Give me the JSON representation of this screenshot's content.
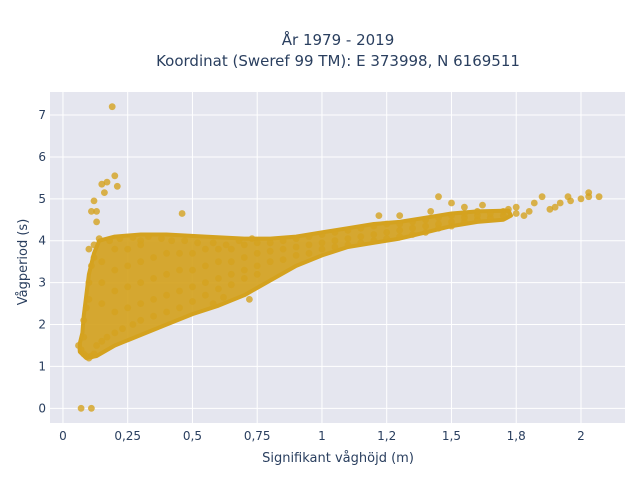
{
  "chart_data": {
    "type": "scatter",
    "title_line1": "År 1979 - 2019",
    "title_line2": "Koordinat (Sweref 99 TM): E 373998, N 6169511",
    "xlabel": "Signifikant våghöjd (m)",
    "ylabel": "Vågperiod (s)",
    "xlim": [
      -0.05,
      2.17
    ],
    "ylim": [
      -0.35,
      7.55
    ],
    "grid": true,
    "x_ticks": [
      {
        "value": 0,
        "label": "0"
      },
      {
        "value": 0.25,
        "label": "0,25"
      },
      {
        "value": 0.5,
        "label": "0,5"
      },
      {
        "value": 0.75,
        "label": "0,75"
      },
      {
        "value": 1,
        "label": "1"
      },
      {
        "value": 1.25,
        "label": "1,2"
      },
      {
        "value": 1.5,
        "label": "1,5"
      },
      {
        "value": 1.75,
        "label": "1,8"
      },
      {
        "value": 2,
        "label": "2"
      }
    ],
    "y_ticks": [
      {
        "value": 0,
        "label": "0"
      },
      {
        "value": 1,
        "label": "1"
      },
      {
        "value": 2,
        "label": "2"
      },
      {
        "value": 3,
        "label": "3"
      },
      {
        "value": 4,
        "label": "4"
      },
      {
        "value": 5,
        "label": "5"
      },
      {
        "value": 6,
        "label": "6"
      },
      {
        "value": 7,
        "label": "7"
      }
    ],
    "marker_color": "#d4a21f",
    "plot_bg": "#e5e6ef",
    "grid_color": "#ffffff",
    "points": [
      [
        0.07,
        0.0
      ],
      [
        0.11,
        0.0
      ],
      [
        0.19,
        7.2
      ],
      [
        0.2,
        5.55
      ],
      [
        0.21,
        5.3
      ],
      [
        0.16,
        5.15
      ],
      [
        0.15,
        5.35
      ],
      [
        0.17,
        5.4
      ],
      [
        0.12,
        4.95
      ],
      [
        0.11,
        4.7
      ],
      [
        0.13,
        4.7
      ],
      [
        0.13,
        4.45
      ],
      [
        0.46,
        4.65
      ],
      [
        0.07,
        1.4
      ],
      [
        0.06,
        1.5
      ],
      [
        0.08,
        1.3
      ],
      [
        0.09,
        1.25
      ],
      [
        0.1,
        1.2
      ],
      [
        0.11,
        1.25
      ],
      [
        0.12,
        1.3
      ],
      [
        0.08,
        2.1
      ],
      [
        0.08,
        1.7
      ],
      [
        0.09,
        2.4
      ],
      [
        0.1,
        2.6
      ],
      [
        0.1,
        3.0
      ],
      [
        0.11,
        3.4
      ],
      [
        0.12,
        3.6
      ],
      [
        0.12,
        3.9
      ],
      [
        0.1,
        3.8
      ],
      [
        0.13,
        1.5
      ],
      [
        0.15,
        1.6
      ],
      [
        0.17,
        1.7
      ],
      [
        0.2,
        1.8
      ],
      [
        0.23,
        1.9
      ],
      [
        0.27,
        2.0
      ],
      [
        0.3,
        2.1
      ],
      [
        0.35,
        2.2
      ],
      [
        0.4,
        2.3
      ],
      [
        0.45,
        2.4
      ],
      [
        0.5,
        2.55
      ],
      [
        0.55,
        2.7
      ],
      [
        0.6,
        2.85
      ],
      [
        0.65,
        2.95
      ],
      [
        0.7,
        3.1
      ],
      [
        0.75,
        3.2
      ],
      [
        0.14,
        4.05
      ],
      [
        0.18,
        4.0
      ],
      [
        0.22,
        4.05
      ],
      [
        0.27,
        4.08
      ],
      [
        0.3,
        4.0
      ],
      [
        0.33,
        4.1
      ],
      [
        0.38,
        4.05
      ],
      [
        0.42,
        4.0
      ],
      [
        0.47,
        4.0
      ],
      [
        0.52,
        3.95
      ],
      [
        0.58,
        3.95
      ],
      [
        0.63,
        3.9
      ],
      [
        0.68,
        4.0
      ],
      [
        0.73,
        4.05
      ],
      [
        0.15,
        2.5
      ],
      [
        0.15,
        3.0
      ],
      [
        0.15,
        3.5
      ],
      [
        0.2,
        2.3
      ],
      [
        0.2,
        2.8
      ],
      [
        0.2,
        3.3
      ],
      [
        0.2,
        3.8
      ],
      [
        0.25,
        2.4
      ],
      [
        0.25,
        2.9
      ],
      [
        0.25,
        3.4
      ],
      [
        0.25,
        3.8
      ],
      [
        0.3,
        2.5
      ],
      [
        0.3,
        3.0
      ],
      [
        0.3,
        3.5
      ],
      [
        0.3,
        3.9
      ],
      [
        0.35,
        2.6
      ],
      [
        0.35,
        3.1
      ],
      [
        0.35,
        3.6
      ],
      [
        0.4,
        2.7
      ],
      [
        0.4,
        3.2
      ],
      [
        0.4,
        3.7
      ],
      [
        0.45,
        2.8
      ],
      [
        0.45,
        3.3
      ],
      [
        0.45,
        3.7
      ],
      [
        0.5,
        2.9
      ],
      [
        0.5,
        3.3
      ],
      [
        0.5,
        3.7
      ],
      [
        0.55,
        3.0
      ],
      [
        0.55,
        3.4
      ],
      [
        0.55,
        3.8
      ],
      [
        0.6,
        3.1
      ],
      [
        0.6,
        3.5
      ],
      [
        0.6,
        3.8
      ],
      [
        0.65,
        3.2
      ],
      [
        0.65,
        3.5
      ],
      [
        0.65,
        3.8
      ],
      [
        0.7,
        3.3
      ],
      [
        0.7,
        3.6
      ],
      [
        0.7,
        3.9
      ],
      [
        0.75,
        3.4
      ],
      [
        0.75,
        3.7
      ],
      [
        0.75,
        3.95
      ],
      [
        0.8,
        3.5
      ],
      [
        0.8,
        3.75
      ],
      [
        0.8,
        3.95
      ],
      [
        0.85,
        3.55
      ],
      [
        0.85,
        3.8
      ],
      [
        0.85,
        4.0
      ],
      [
        0.9,
        3.65
      ],
      [
        0.9,
        3.85
      ],
      [
        0.9,
        4.05
      ],
      [
        0.95,
        3.7
      ],
      [
        0.95,
        3.9
      ],
      [
        0.95,
        4.1
      ],
      [
        1.0,
        3.8
      ],
      [
        1.0,
        3.95
      ],
      [
        1.0,
        4.15
      ],
      [
        1.05,
        3.85
      ],
      [
        1.05,
        4.0
      ],
      [
        1.05,
        4.2
      ],
      [
        1.1,
        3.9
      ],
      [
        1.1,
        4.05
      ],
      [
        1.1,
        4.25
      ],
      [
        1.15,
        3.95
      ],
      [
        1.15,
        4.1
      ],
      [
        1.15,
        4.3
      ],
      [
        1.2,
        4.0
      ],
      [
        1.2,
        4.15
      ],
      [
        1.2,
        4.35
      ],
      [
        1.25,
        4.05
      ],
      [
        1.25,
        4.2
      ],
      [
        1.25,
        4.4
      ],
      [
        1.3,
        4.1
      ],
      [
        1.3,
        4.25
      ],
      [
        1.3,
        4.4
      ],
      [
        1.35,
        4.15
      ],
      [
        1.35,
        4.3
      ],
      [
        1.35,
        4.45
      ],
      [
        1.4,
        4.2
      ],
      [
        1.4,
        4.35
      ],
      [
        1.4,
        4.5
      ],
      [
        1.45,
        4.3
      ],
      [
        1.45,
        4.4
      ],
      [
        1.45,
        4.55
      ],
      [
        1.5,
        4.35
      ],
      [
        1.5,
        4.45
      ],
      [
        1.5,
        4.6
      ],
      [
        1.55,
        4.45
      ],
      [
        1.55,
        4.55
      ],
      [
        1.55,
        4.65
      ],
      [
        1.6,
        4.5
      ],
      [
        1.6,
        4.6
      ],
      [
        1.6,
        4.7
      ],
      [
        1.65,
        4.55
      ],
      [
        1.65,
        4.65
      ],
      [
        1.7,
        4.6
      ],
      [
        1.7,
        4.7
      ],
      [
        1.75,
        4.65
      ],
      [
        1.75,
        4.8
      ],
      [
        1.78,
        4.6
      ],
      [
        1.8,
        4.7
      ],
      [
        1.82,
        4.9
      ],
      [
        1.85,
        5.05
      ],
      [
        1.88,
        4.75
      ],
      [
        1.9,
        4.8
      ],
      [
        1.92,
        4.9
      ],
      [
        1.95,
        5.05
      ],
      [
        1.96,
        4.95
      ],
      [
        2.03,
        5.15
      ],
      [
        2.0,
        5.0
      ],
      [
        2.03,
        5.05
      ],
      [
        2.07,
        5.05
      ],
      [
        1.22,
        4.6
      ],
      [
        1.42,
        4.7
      ],
      [
        1.5,
        4.9
      ],
      [
        1.45,
        5.05
      ],
      [
        1.62,
        4.85
      ],
      [
        1.55,
        4.8
      ],
      [
        1.72,
        4.75
      ],
      [
        1.3,
        4.6
      ],
      [
        0.72,
        2.6
      ],
      [
        0.62,
        2.65
      ],
      [
        0.58,
        2.5
      ]
    ]
  }
}
